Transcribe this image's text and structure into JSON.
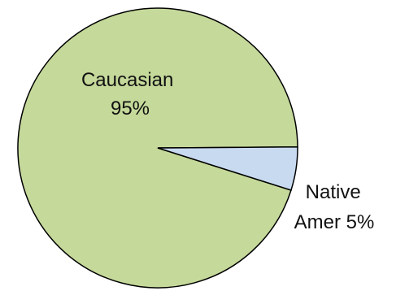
{
  "chart_data": {
    "type": "pie",
    "categories": [
      "Caucasian",
      "Native Amer"
    ],
    "values": [
      95,
      5
    ],
    "data_labels": [
      [
        "Caucasian",
        "95%"
      ],
      [
        "Native",
        "Amer 5%"
      ]
    ],
    "colors": [
      "#c5d99a",
      "#c8daf0"
    ],
    "stroke_color": "#000000",
    "legend": false
  }
}
